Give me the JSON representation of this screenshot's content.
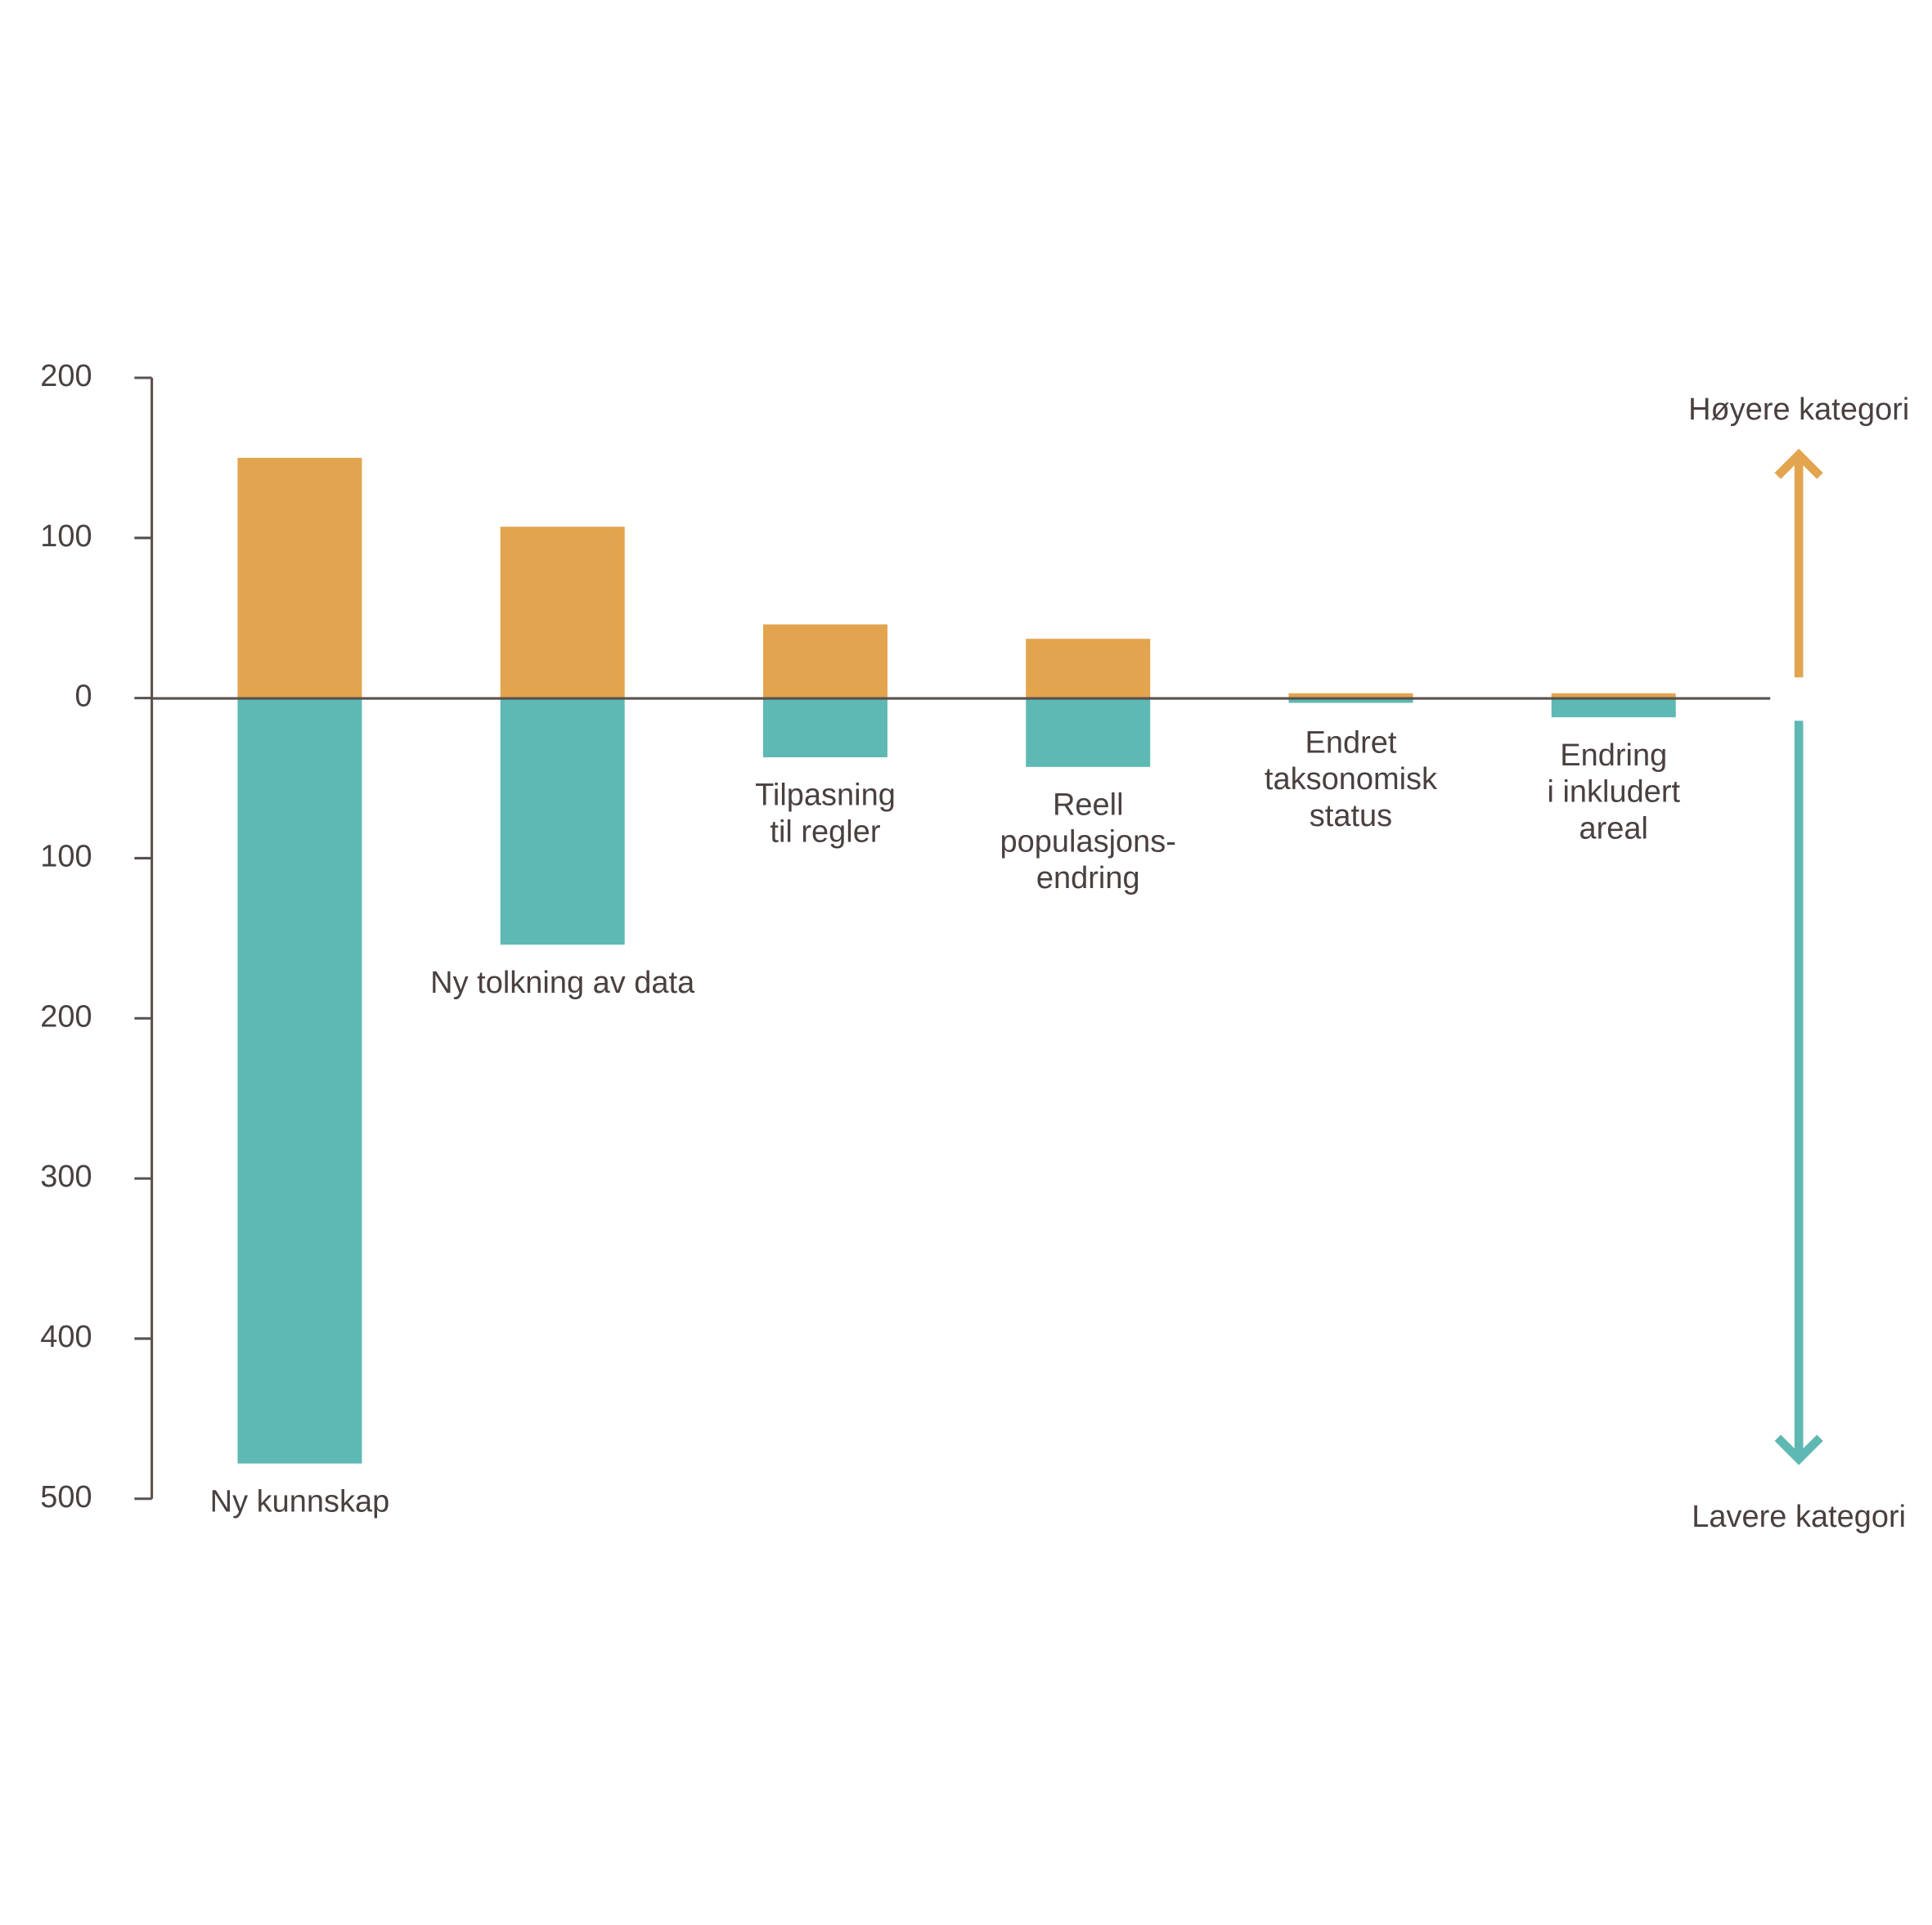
{
  "chart_data": {
    "type": "bar",
    "categories": [
      [
        "Ny kunnskap"
      ],
      [
        "Ny tolkning av data"
      ],
      [
        "Tilpasning",
        "til regler"
      ],
      [
        "Reell",
        "populasjons-",
        "endring"
      ],
      [
        "Endret",
        "taksonomisk",
        "status"
      ],
      [
        "Endring",
        "i inkludert",
        "areal"
      ]
    ],
    "series": [
      {
        "name": "Høyere kategori",
        "color": "#e2a44e",
        "values": [
          150,
          107,
          46,
          37,
          3,
          3
        ]
      },
      {
        "name": "Lavere kategori",
        "color": "#5eb8b3",
        "values": [
          -478,
          -154,
          -37,
          -43,
          -3,
          -12
        ]
      }
    ],
    "ylim": [
      -500,
      200
    ],
    "yticks": [
      200,
      100,
      0,
      {
        "value": -100,
        "label": "100"
      },
      {
        "value": -200,
        "label": "200"
      },
      {
        "value": -300,
        "label": "300"
      },
      {
        "value": -400,
        "label": "400"
      },
      {
        "value": -500,
        "label": "500"
      }
    ],
    "grid": false
  }
}
